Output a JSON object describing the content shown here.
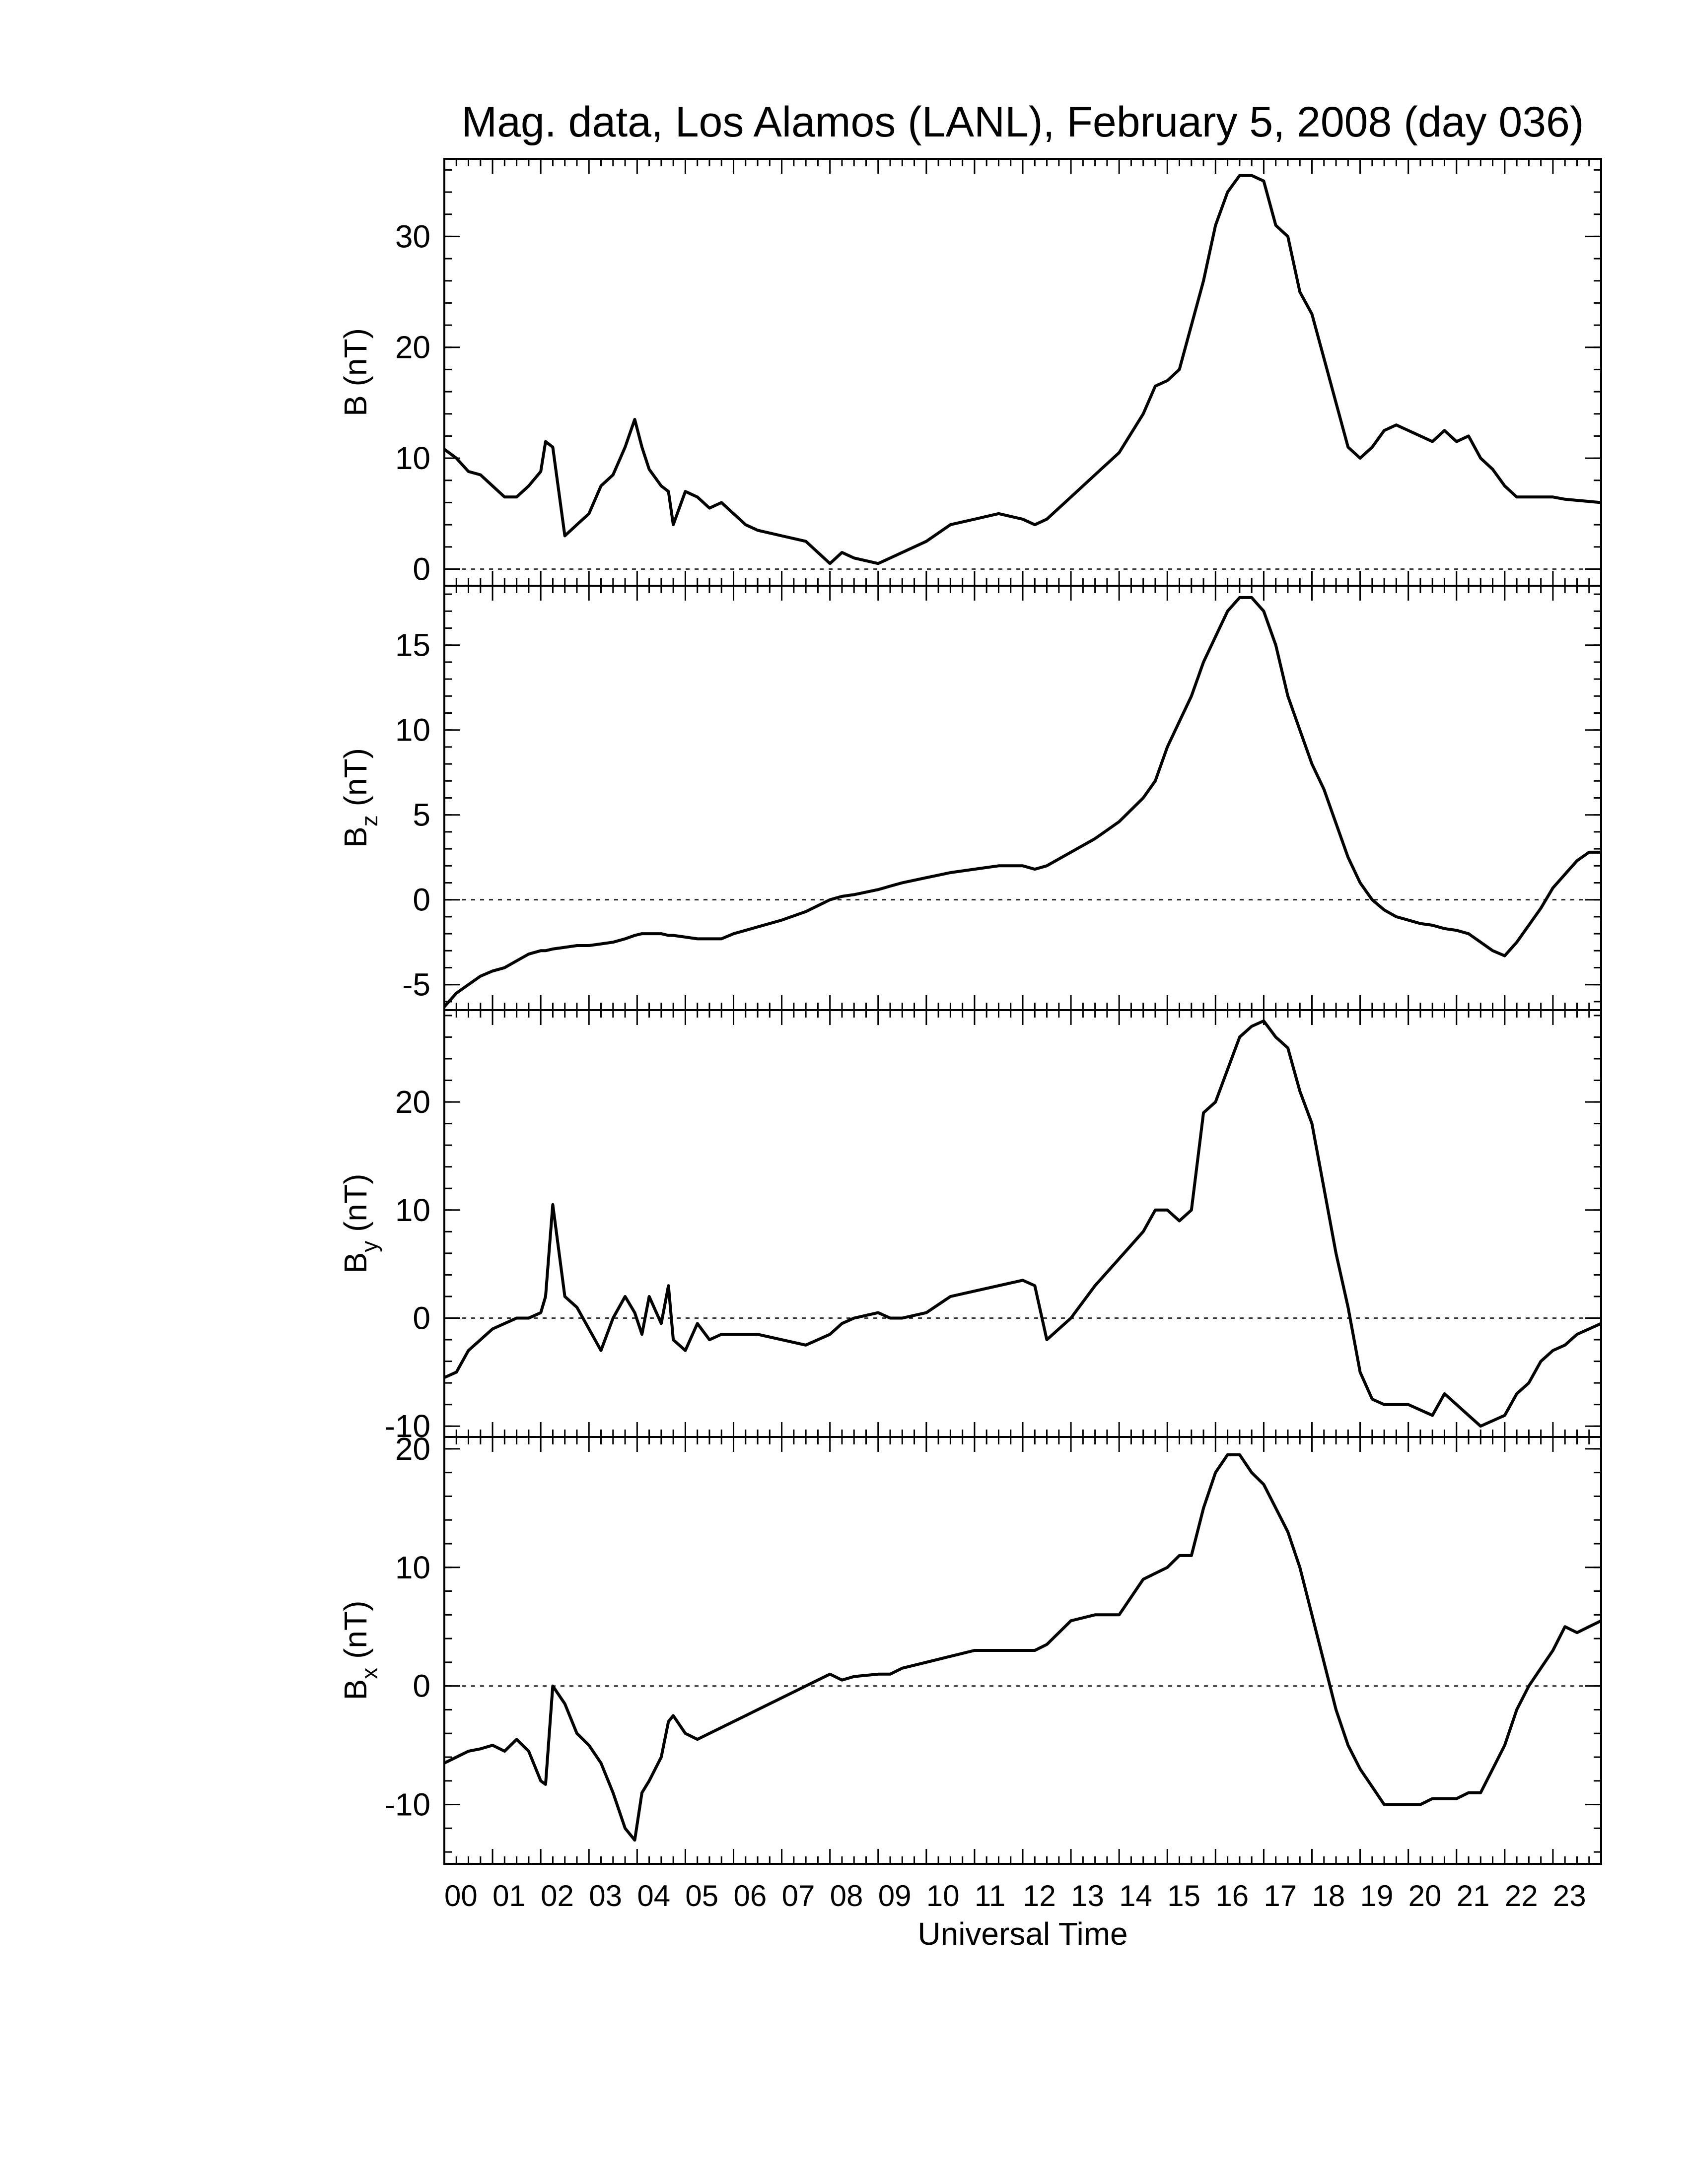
{
  "chart_data": {
    "type": "line",
    "title": "Mag. data, Los Alamos (LANL), February 5, 2008 (day 036)",
    "xlabel": "Universal Time",
    "xlim": [
      0,
      24
    ],
    "x_tick_labels": [
      "00",
      "01",
      "02",
      "03",
      "04",
      "05",
      "06",
      "07",
      "08",
      "09",
      "10",
      "11",
      "12",
      "13",
      "14",
      "15",
      "16",
      "17",
      "18",
      "19",
      "20",
      "21",
      "22",
      "23"
    ],
    "x": [
      0,
      0.25,
      0.5,
      0.75,
      1,
      1.25,
      1.5,
      1.75,
      2,
      2.1,
      2.25,
      2.5,
      2.75,
      3,
      3.25,
      3.5,
      3.75,
      3.95,
      4.1,
      4.25,
      4.5,
      4.65,
      4.75,
      5,
      5.25,
      5.5,
      5.75,
      6,
      6.25,
      6.5,
      7,
      7.5,
      8,
      8.25,
      8.5,
      9,
      9.25,
      9.5,
      10,
      10.5,
      11,
      11.5,
      12,
      12.25,
      12.5,
      13,
      13.5,
      14,
      14.5,
      14.75,
      15,
      15.25,
      15.5,
      15.75,
      16,
      16.25,
      16.5,
      16.75,
      17,
      17.25,
      17.5,
      17.75,
      18,
      18.25,
      18.5,
      18.75,
      19,
      19.25,
      19.5,
      19.75,
      20,
      20.25,
      20.5,
      20.75,
      21,
      21.25,
      21.5,
      21.75,
      22,
      22.25,
      22.5,
      22.75,
      23,
      23.25,
      23.5,
      23.75,
      24
    ],
    "panels": [
      {
        "ylabel": "B",
        "ylabel_sub": "",
        "ylabel_unit": " (nT)",
        "ylim": [
          -1.5,
          37
        ],
        "yticks": [
          0,
          10,
          20,
          30
        ],
        "ytick_labels": [
          "0",
          "10",
          "20",
          "30"
        ],
        "minor_step": 2,
        "values": [
          10.8,
          10,
          8.8,
          8.5,
          7.5,
          6.5,
          6.5,
          7.5,
          8.8,
          11.5,
          11,
          3,
          4,
          5,
          7.5,
          8.5,
          11,
          13.5,
          11,
          9,
          7.5,
          7,
          4,
          7,
          6.5,
          5.5,
          6,
          5,
          4,
          3.5,
          3,
          2.5,
          0.5,
          1.5,
          1,
          0.5,
          1,
          1.5,
          2.5,
          4,
          4.5,
          5,
          4.5,
          4,
          4.5,
          6.5,
          8.5,
          10.5,
          14,
          16.5,
          17,
          18,
          22,
          26,
          31,
          34,
          35.5,
          35.5,
          35,
          31,
          30,
          25,
          23,
          19,
          15,
          11,
          10,
          11,
          12.5,
          13,
          12.5,
          12,
          11.5,
          12.5,
          11.5,
          12,
          10,
          9,
          7.5,
          6.5,
          6.5,
          6.5,
          6.5,
          6.3,
          6.2,
          6.1,
          6
        ]
      },
      {
        "ylabel": "B",
        "ylabel_sub": "z",
        "ylabel_unit": " (nT)",
        "ylim": [
          -6.5,
          18.5
        ],
        "yticks": [
          -5,
          0,
          5,
          10,
          15
        ],
        "ytick_labels": [
          "-5",
          "0",
          "5",
          "10",
          "15"
        ],
        "minor_step": 1,
        "values": [
          -6.3,
          -5.5,
          -5,
          -4.5,
          -4.2,
          -4,
          -3.6,
          -3.2,
          -3,
          -3,
          -2.9,
          -2.8,
          -2.7,
          -2.7,
          -2.6,
          -2.5,
          -2.3,
          -2.1,
          -2,
          -2,
          -2,
          -2.1,
          -2.1,
          -2.2,
          -2.3,
          -2.3,
          -2.3,
          -2,
          -1.8,
          -1.6,
          -1.2,
          -0.7,
          0,
          0.2,
          0.3,
          0.6,
          0.8,
          1,
          1.3,
          1.6,
          1.8,
          2,
          2,
          1.8,
          2,
          2.8,
          3.6,
          4.6,
          6,
          7,
          9,
          10.5,
          12,
          14,
          15.5,
          17,
          17.8,
          17.8,
          17,
          15,
          12,
          10,
          8,
          6.5,
          4.5,
          2.5,
          1,
          0,
          -0.6,
          -1,
          -1.2,
          -1.4,
          -1.5,
          -1.7,
          -1.8,
          -2,
          -2.5,
          -3,
          -3.3,
          -2.5,
          -1.5,
          -0.5,
          0.7,
          1.5,
          2.3,
          2.8,
          2.8
        ]
      },
      {
        "ylabel": "B",
        "ylabel_sub": "y",
        "ylabel_unit": " (nT)",
        "ylim": [
          -11,
          28.5
        ],
        "yticks": [
          -10,
          0,
          10,
          20
        ],
        "ytick_labels": [
          "-10",
          "0",
          "10",
          "20"
        ],
        "minor_step": 2,
        "values": [
          -5.5,
          -5,
          -3,
          -2,
          -1,
          -0.5,
          0,
          0,
          0.5,
          2,
          10.5,
          2,
          1,
          -1,
          -3,
          0,
          2,
          0.5,
          -1.5,
          2,
          -0.5,
          3,
          -2,
          -3,
          -0.5,
          -2,
          -1.5,
          -1.5,
          -1.5,
          -1.5,
          -2,
          -2.5,
          -1.5,
          -0.5,
          0,
          0.5,
          0,
          0,
          0.5,
          2,
          2.5,
          3,
          3.5,
          3,
          -2,
          0,
          3,
          5.5,
          8,
          10,
          10,
          9,
          10,
          19,
          20,
          23,
          26,
          27,
          27.5,
          26,
          25,
          21,
          18,
          12,
          6,
          1,
          -5,
          -7.5,
          -8,
          -8,
          -8,
          -8.5,
          -9,
          -7,
          -8,
          -9,
          -10,
          -9.5,
          -9,
          -7,
          -6,
          -4,
          -3,
          -2.5,
          -1.5,
          -1,
          -0.5
        ]
      },
      {
        "ylabel": "B",
        "ylabel_sub": "x",
        "ylabel_unit": " (nT)",
        "ylim": [
          -15,
          21
        ],
        "yticks": [
          -10,
          0,
          10,
          20
        ],
        "ytick_labels": [
          "-10",
          "0",
          "10",
          "20"
        ],
        "minor_step": 2,
        "values": [
          -6.5,
          -6,
          -5.5,
          -5.3,
          -5,
          -5.5,
          -4.5,
          -5.5,
          -8,
          -8.3,
          0,
          -1.5,
          -4,
          -5,
          -6.5,
          -9,
          -12,
          -13,
          -9,
          -8,
          -6,
          -3,
          -2.5,
          -4,
          -4.5,
          -4,
          -3.5,
          -3,
          -2.5,
          -2,
          -1,
          0,
          1,
          0.5,
          0.8,
          1,
          1,
          1.5,
          2,
          2.5,
          3,
          3,
          3,
          3,
          3.5,
          5.5,
          6,
          6,
          9,
          9.5,
          10,
          11,
          11,
          15,
          18,
          19.5,
          19.5,
          18,
          17,
          15,
          13,
          10,
          6,
          2,
          -2,
          -5,
          -7,
          -8.5,
          -10,
          -10,
          -10,
          -10,
          -9.5,
          -9.5,
          -9.5,
          -9,
          -9,
          -7,
          -5,
          -2,
          0,
          1.5,
          3,
          5,
          4.5,
          5,
          5.5
        ]
      }
    ]
  }
}
